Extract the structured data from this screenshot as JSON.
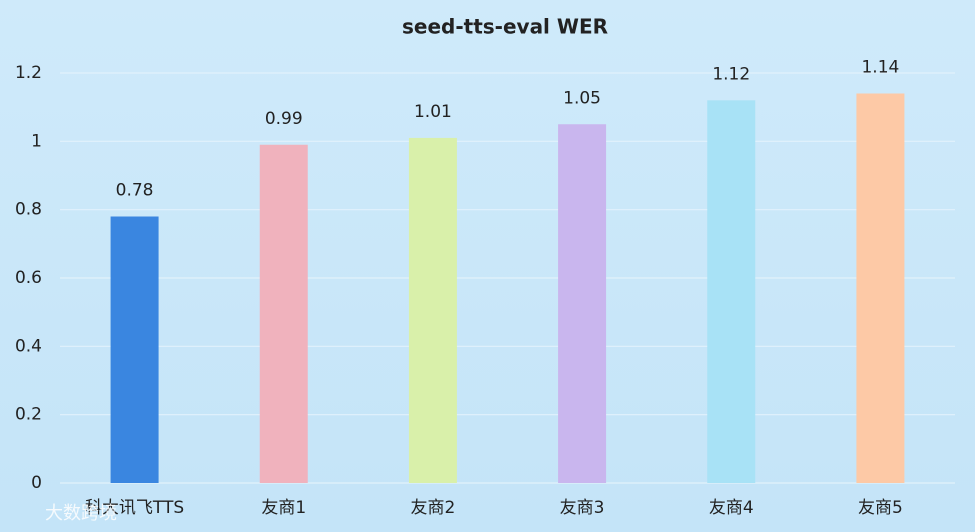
{
  "chart_data": {
    "type": "bar",
    "title": "seed-tts-eval WER",
    "categories": [
      "科大讯飞TTS",
      "友商1",
      "友商2",
      "友商3",
      "友商4",
      "友商5"
    ],
    "values": [
      0.78,
      0.99,
      1.01,
      1.05,
      1.12,
      1.14
    ],
    "colors": [
      "#3a86e0",
      "#f0b2bd",
      "#d9f0aa",
      "#c9b6ee",
      "#a8e2f6",
      "#fdc9a6"
    ],
    "ylim": [
      0,
      1.2
    ],
    "yticks": [
      0,
      0.2,
      0.4,
      0.6,
      0.8,
      1,
      1.2
    ],
    "grid": true,
    "watermark": "大数跨境"
  }
}
